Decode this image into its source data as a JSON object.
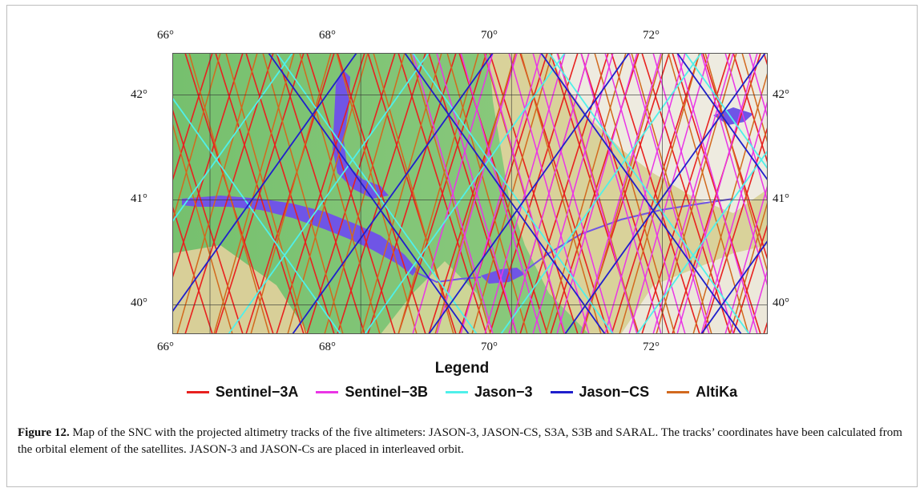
{
  "map": {
    "top_lon_labels": [
      "66°",
      "68°",
      "70°",
      "72°"
    ],
    "bottom_lon_labels": [
      "66°",
      "68°",
      "70°",
      "72°"
    ],
    "left_lat_labels": [
      "42°",
      "41°",
      "40°"
    ],
    "right_lat_labels": [
      "42°",
      "41°",
      "40°"
    ],
    "lon_range": [
      65.5,
      73.4
    ],
    "lat_range": [
      39.72,
      42.4
    ],
    "colors": {
      "lowland": "#7cc37a",
      "upland": "#d8cf98",
      "mountain": "#f1eee4",
      "water": "#6f55e6"
    }
  },
  "legend": {
    "title": "Legend",
    "items": [
      {
        "label": "Sentinel−3A",
        "color": "#e8211f"
      },
      {
        "label": "Sentinel−3B",
        "color": "#ea35e6"
      },
      {
        "label": "Jason−3",
        "color": "#4ff0ea"
      },
      {
        "label": "Jason−CS",
        "color": "#1f1fcc"
      },
      {
        "label": "AltiKa",
        "color": "#d2691e"
      }
    ]
  },
  "caption": {
    "figure_label": "Figure 12.",
    "text": " Map of the SNC with the projected altimetry tracks of the five altimeters: JASON-3, JASON-CS, S3A, S3B and SARAL. The tracks’ coordinates have been calculated from the orbital element of the satellites. JASON-3 and JASON-Cs are placed in interleaved orbit."
  }
}
